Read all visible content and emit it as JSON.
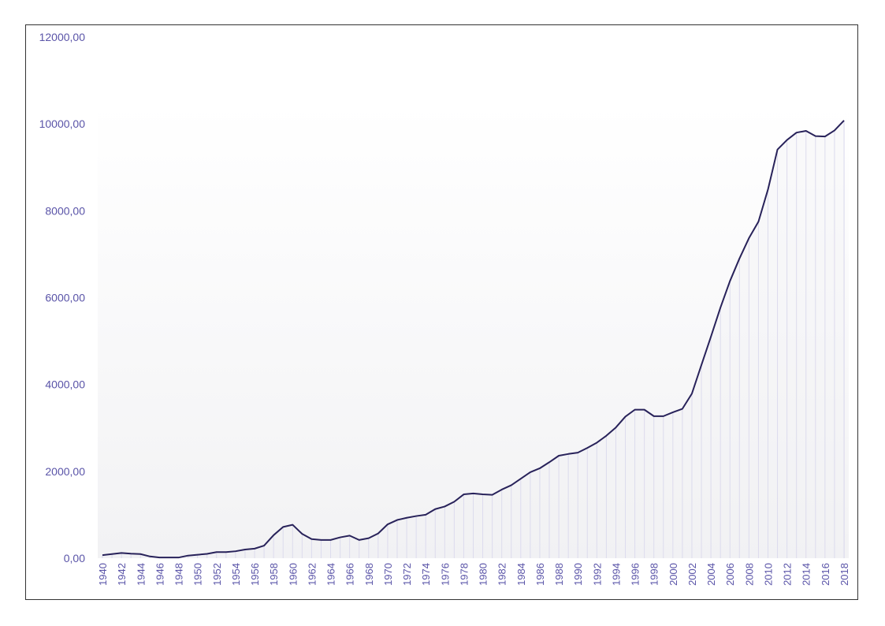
{
  "chart_data": {
    "type": "area",
    "title": "",
    "xlabel": "",
    "ylabel": "",
    "grid": "vertical",
    "legend": "none",
    "colors": {
      "line": "#28225a",
      "fill_top": "#ffffff",
      "fill_bottom": "#f2f2f4",
      "gridline": "#d2d0ea",
      "tick_label": "#5a54a8",
      "frame": "#333333"
    },
    "ylim": [
      0,
      12000
    ],
    "yticks": [
      0,
      2000,
      4000,
      6000,
      8000,
      10000,
      12000
    ],
    "ytick_labels": [
      "0,00",
      "2000,00",
      "4000,00",
      "6000,00",
      "8000,00",
      "10000,00",
      "12000,00"
    ],
    "xtick_labels": [
      "1940",
      "1942",
      "1944",
      "1946",
      "1948",
      "1950",
      "1952",
      "1954",
      "1956",
      "1958",
      "1960",
      "1962",
      "1964",
      "1966",
      "1968",
      "1970",
      "1972",
      "1974",
      "1976",
      "1978",
      "1980",
      "1982",
      "1984",
      "1986",
      "1988",
      "1990",
      "1992",
      "1994",
      "1996",
      "1998",
      "2000",
      "2002",
      "2004",
      "2006",
      "2008",
      "2010",
      "2012",
      "2014",
      "2016",
      "2018"
    ],
    "x": [
      1940,
      1941,
      1942,
      1943,
      1944,
      1945,
      1946,
      1947,
      1948,
      1949,
      1950,
      1951,
      1952,
      1953,
      1954,
      1955,
      1956,
      1957,
      1958,
      1959,
      1960,
      1961,
      1962,
      1963,
      1964,
      1965,
      1966,
      1967,
      1968,
      1969,
      1970,
      1971,
      1972,
      1973,
      1974,
      1975,
      1976,
      1977,
      1978,
      1979,
      1980,
      1981,
      1982,
      1983,
      1984,
      1985,
      1986,
      1987,
      1988,
      1989,
      1990,
      1991,
      1992,
      1993,
      1994,
      1995,
      1996,
      1997,
      1998,
      1999,
      2000,
      2001,
      2002,
      2003,
      2004,
      2005,
      2006,
      2007,
      2008,
      2009,
      2010,
      2011,
      2012,
      2013,
      2014,
      2015,
      2016,
      2017,
      2018
    ],
    "values": [
      70,
      95,
      120,
      105,
      95,
      40,
      15,
      15,
      15,
      60,
      80,
      100,
      140,
      140,
      160,
      200,
      220,
      290,
      530,
      720,
      770,
      560,
      440,
      420,
      420,
      480,
      520,
      420,
      460,
      570,
      780,
      880,
      930,
      970,
      1000,
      1130,
      1190,
      1300,
      1470,
      1490,
      1470,
      1460,
      1580,
      1680,
      1830,
      1980,
      2070,
      2210,
      2360,
      2400,
      2430,
      2540,
      2660,
      2820,
      3010,
      3260,
      3420,
      3420,
      3270,
      3270,
      3360,
      3440,
      3790,
      4450,
      5100,
      5770,
      6380,
      6900,
      7370,
      7750,
      8490,
      9410,
      9630,
      9800,
      9840,
      9720,
      9710,
      9850,
      10080
    ]
  }
}
